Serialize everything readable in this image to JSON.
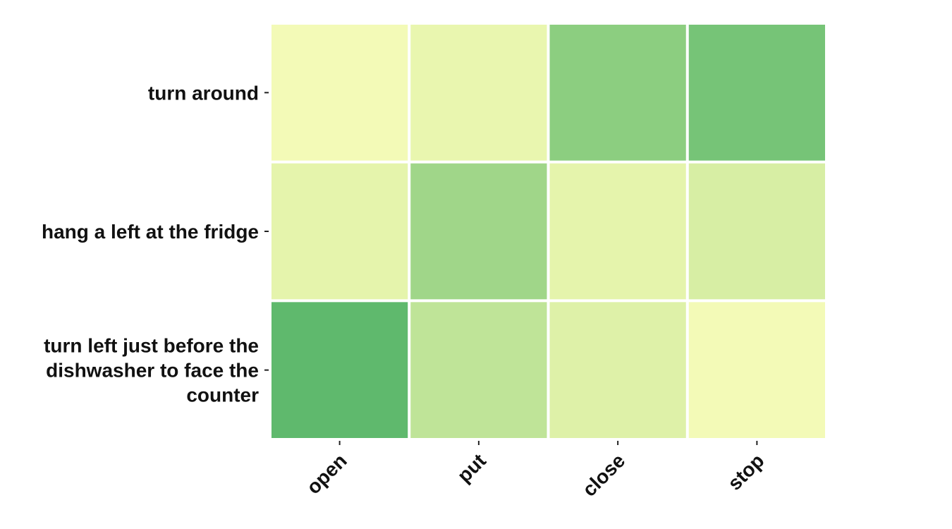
{
  "chart_data": {
    "type": "heatmap",
    "rows": [
      [
        "turn around"
      ],
      [
        "hang a left at the fridge"
      ],
      [
        "turn left just before the",
        "dishwasher to face the",
        "counter"
      ]
    ],
    "columns": [
      "open",
      "put",
      "close",
      "stop"
    ],
    "values": [
      [
        0.02,
        0.12,
        0.58,
        0.7
      ],
      [
        0.16,
        0.48,
        0.16,
        0.24
      ],
      [
        0.82,
        0.36,
        0.2,
        0.02
      ]
    ],
    "value_range": [
      0,
      1
    ],
    "colormap": {
      "name": "YlGn",
      "stops": [
        "#f5fbb9",
        "#e4f4ab",
        "#c6e79b",
        "#9bd486",
        "#7cc77a",
        "#5cb86c",
        "#3da55a"
      ]
    },
    "gridlines": false,
    "legend": "none"
  }
}
